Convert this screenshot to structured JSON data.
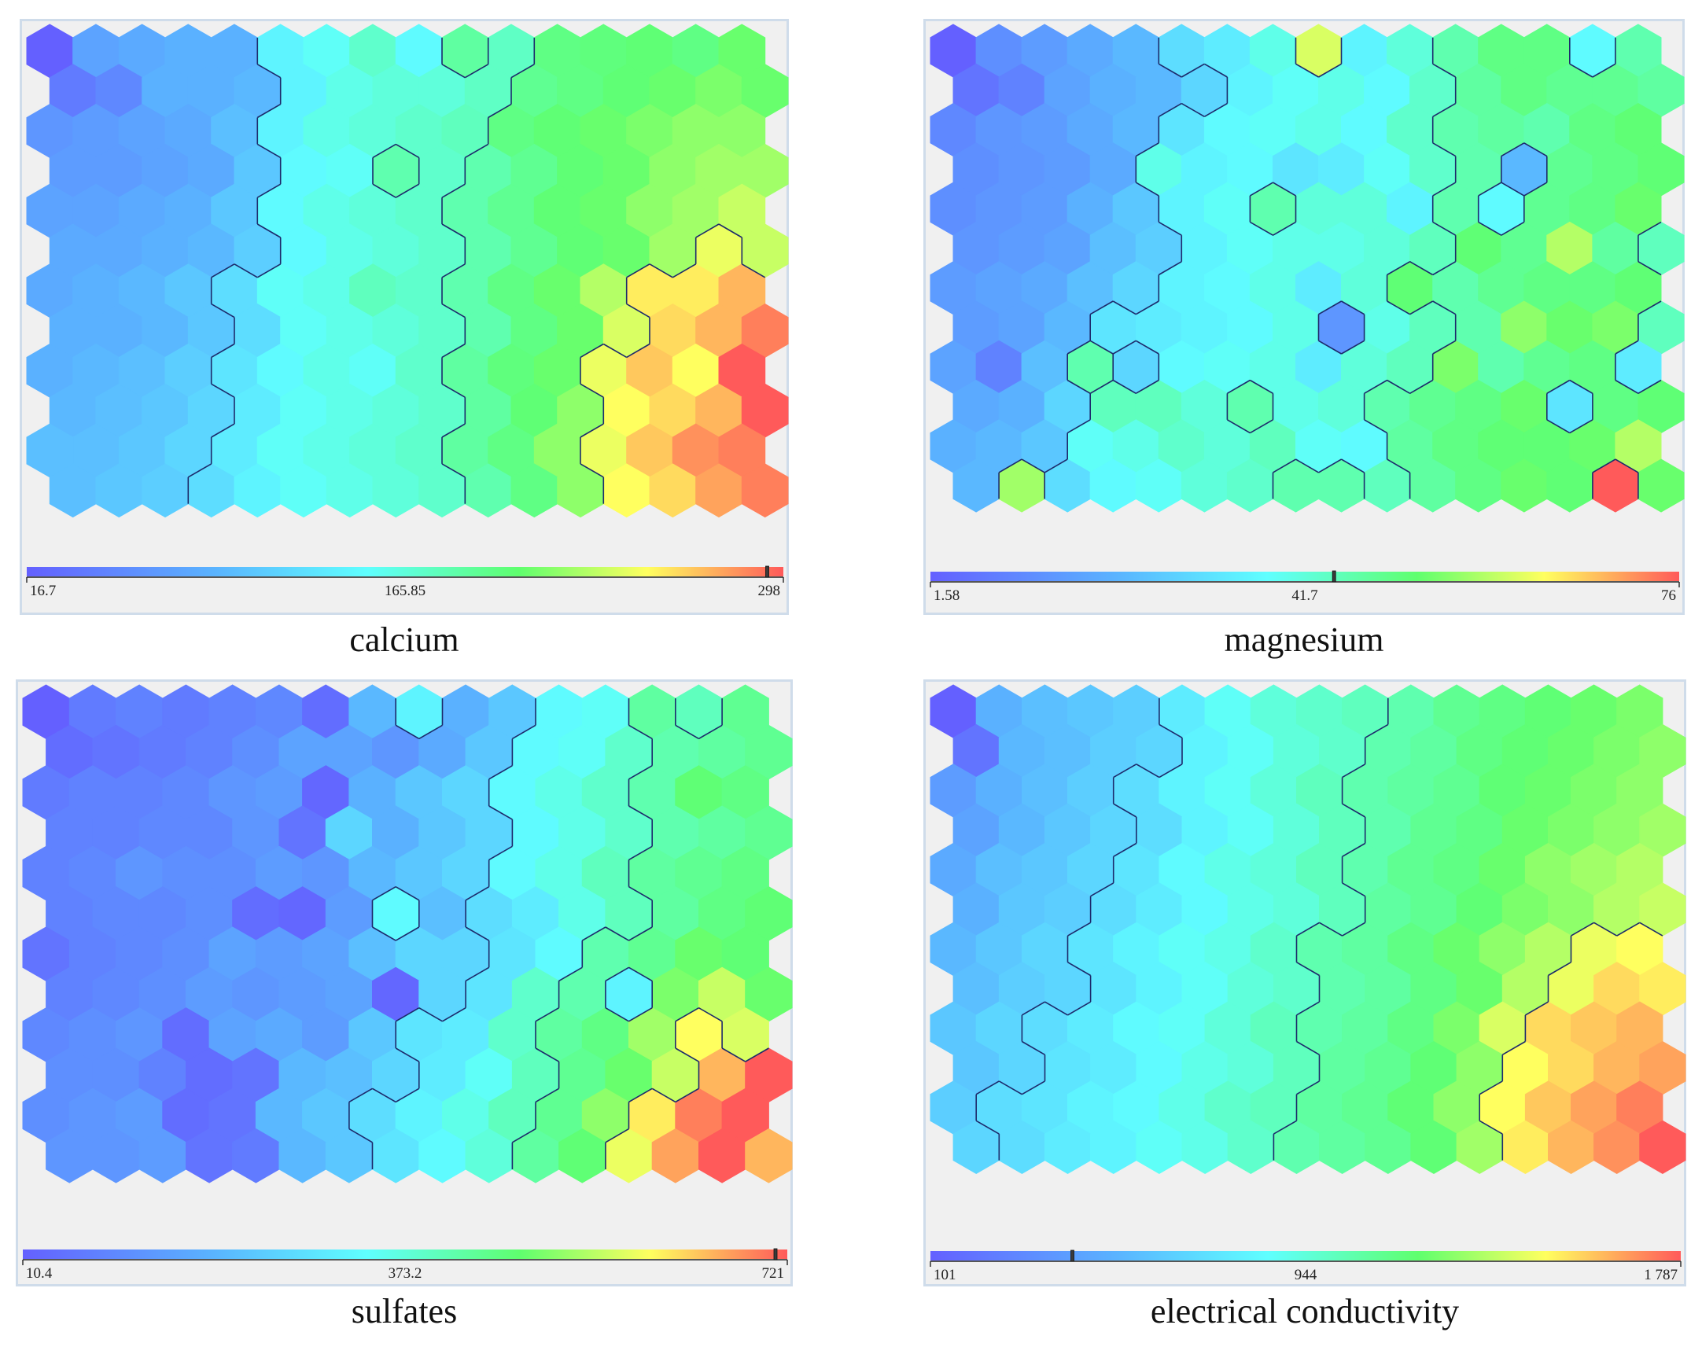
{
  "chart_data": [
    {
      "type": "heatmap",
      "title": "calcium",
      "scale": {
        "min_label": "16.7",
        "mid_label": "165.85",
        "max_label": "298",
        "min": 16.7,
        "mid": 165.85,
        "max": 298,
        "marker": 292
      },
      "grid": {
        "cols": 16,
        "rows": 12
      },
      "values": [
        [
          0.0,
          0.2,
          0.22,
          0.24,
          0.24,
          0.42,
          0.46,
          0.52,
          0.44,
          0.58,
          0.53,
          0.62,
          0.63,
          0.64,
          0.62,
          0.66
        ],
        [
          0.08,
          0.12,
          0.24,
          0.24,
          0.26,
          0.42,
          0.48,
          0.5,
          0.5,
          0.53,
          0.6,
          0.62,
          0.64,
          0.66,
          0.68,
          0.66
        ],
        [
          0.16,
          0.18,
          0.2,
          0.22,
          0.28,
          0.42,
          0.48,
          0.5,
          0.52,
          0.54,
          0.62,
          0.64,
          0.66,
          0.68,
          0.7,
          0.7
        ],
        [
          0.18,
          0.18,
          0.2,
          0.22,
          0.3,
          0.44,
          0.46,
          0.56,
          0.52,
          0.56,
          0.6,
          0.64,
          0.66,
          0.7,
          0.72,
          0.72
        ],
        [
          0.2,
          0.2,
          0.22,
          0.24,
          0.3,
          0.44,
          0.48,
          0.5,
          0.52,
          0.56,
          0.6,
          0.64,
          0.66,
          0.7,
          0.72,
          0.76
        ],
        [
          0.22,
          0.22,
          0.24,
          0.26,
          0.32,
          0.44,
          0.48,
          0.5,
          0.52,
          0.56,
          0.6,
          0.64,
          0.66,
          0.72,
          0.8,
          0.76
        ],
        [
          0.22,
          0.24,
          0.26,
          0.3,
          0.36,
          0.46,
          0.48,
          0.54,
          0.52,
          0.56,
          0.62,
          0.66,
          0.74,
          0.84,
          0.84,
          0.9
        ],
        [
          0.24,
          0.24,
          0.26,
          0.3,
          0.36,
          0.46,
          0.48,
          0.5,
          0.52,
          0.56,
          0.62,
          0.66,
          0.78,
          0.86,
          0.9,
          0.96
        ],
        [
          0.24,
          0.26,
          0.28,
          0.32,
          0.38,
          0.44,
          0.48,
          0.46,
          0.52,
          0.58,
          0.63,
          0.66,
          0.8,
          0.88,
          0.82,
          1.0
        ],
        [
          0.26,
          0.28,
          0.3,
          0.34,
          0.4,
          0.46,
          0.48,
          0.5,
          0.52,
          0.58,
          0.64,
          0.7,
          0.82,
          0.86,
          0.9,
          1.0
        ],
        [
          0.28,
          0.28,
          0.3,
          0.34,
          0.4,
          0.46,
          0.48,
          0.5,
          0.52,
          0.58,
          0.62,
          0.7,
          0.8,
          0.88,
          0.94,
          0.96
        ],
        [
          0.28,
          0.3,
          0.32,
          0.36,
          0.42,
          0.46,
          0.48,
          0.5,
          0.52,
          0.56,
          0.62,
          0.7,
          0.82,
          0.86,
          0.92,
          0.96
        ]
      ]
    },
    {
      "type": "heatmap",
      "title": "magnesium",
      "scale": {
        "min_label": "1.58",
        "mid_label": "41.7",
        "max_label": "76",
        "min": 1.58,
        "mid": 41.7,
        "max": 76,
        "marker": 41.7
      },
      "grid": {
        "cols": 16,
        "rows": 12
      },
      "values": [
        [
          0.0,
          0.14,
          0.18,
          0.22,
          0.26,
          0.36,
          0.4,
          0.48,
          0.78,
          0.42,
          0.5,
          0.56,
          0.62,
          0.62,
          0.44,
          0.56
        ],
        [
          0.06,
          0.1,
          0.2,
          0.24,
          0.26,
          0.34,
          0.42,
          0.46,
          0.48,
          0.44,
          0.52,
          0.58,
          0.62,
          0.6,
          0.6,
          0.58
        ],
        [
          0.12,
          0.16,
          0.18,
          0.22,
          0.26,
          0.38,
          0.44,
          0.46,
          0.48,
          0.44,
          0.52,
          0.56,
          0.58,
          0.56,
          0.62,
          0.64
        ],
        [
          0.14,
          0.16,
          0.18,
          0.22,
          0.48,
          0.42,
          0.44,
          0.38,
          0.4,
          0.46,
          0.52,
          0.56,
          0.26,
          0.6,
          0.62,
          0.64
        ],
        [
          0.14,
          0.16,
          0.18,
          0.24,
          0.3,
          0.42,
          0.46,
          0.56,
          0.5,
          0.5,
          0.42,
          0.56,
          0.44,
          0.6,
          0.62,
          0.66
        ],
        [
          0.16,
          0.18,
          0.2,
          0.28,
          0.32,
          0.42,
          0.46,
          0.48,
          0.48,
          0.5,
          0.54,
          0.64,
          0.6,
          0.74,
          0.58,
          0.54
        ],
        [
          0.18,
          0.2,
          0.22,
          0.28,
          0.34,
          0.42,
          0.44,
          0.48,
          0.4,
          0.5,
          0.64,
          0.56,
          0.6,
          0.62,
          0.62,
          0.64
        ],
        [
          0.18,
          0.2,
          0.26,
          0.38,
          0.4,
          0.42,
          0.44,
          0.48,
          0.16,
          0.48,
          0.54,
          0.56,
          0.7,
          0.66,
          0.68,
          0.54
        ],
        [
          0.2,
          0.1,
          0.28,
          0.56,
          0.34,
          0.44,
          0.46,
          0.48,
          0.4,
          0.5,
          0.54,
          0.68,
          0.56,
          0.6,
          0.62,
          0.4
        ],
        [
          0.22,
          0.24,
          0.34,
          0.54,
          0.54,
          0.5,
          0.56,
          0.48,
          0.5,
          0.56,
          0.6,
          0.62,
          0.66,
          0.38,
          0.62,
          0.64
        ],
        [
          0.24,
          0.26,
          0.3,
          0.46,
          0.48,
          0.52,
          0.5,
          0.54,
          0.46,
          0.44,
          0.58,
          0.62,
          0.64,
          0.64,
          0.66,
          0.74
        ],
        [
          0.26,
          0.72,
          0.36,
          0.44,
          0.46,
          0.5,
          0.52,
          0.56,
          0.56,
          0.54,
          0.58,
          0.62,
          0.66,
          0.64,
          1.0,
          0.66
        ]
      ]
    },
    {
      "type": "heatmap",
      "title": "sulfates",
      "scale": {
        "min_label": "10.4",
        "mid_label": "373.2",
        "max_label": "721",
        "min": 10.4,
        "mid": 373.2,
        "max": 721,
        "marker": 710
      },
      "grid": {
        "cols": 16,
        "rows": 12
      },
      "values": [
        [
          0.0,
          0.08,
          0.1,
          0.08,
          0.1,
          0.12,
          0.04,
          0.26,
          0.42,
          0.24,
          0.3,
          0.44,
          0.46,
          0.58,
          0.54,
          0.6
        ],
        [
          0.04,
          0.06,
          0.08,
          0.1,
          0.14,
          0.2,
          0.2,
          0.16,
          0.22,
          0.3,
          0.44,
          0.46,
          0.52,
          0.56,
          0.58,
          0.6
        ],
        [
          0.08,
          0.1,
          0.1,
          0.12,
          0.16,
          0.18,
          0.02,
          0.24,
          0.3,
          0.34,
          0.44,
          0.48,
          0.52,
          0.56,
          0.64,
          0.62
        ],
        [
          0.1,
          0.1,
          0.12,
          0.12,
          0.16,
          0.06,
          0.34,
          0.24,
          0.3,
          0.34,
          0.44,
          0.48,
          0.52,
          0.56,
          0.58,
          0.6
        ],
        [
          0.1,
          0.12,
          0.16,
          0.14,
          0.14,
          0.18,
          0.16,
          0.26,
          0.3,
          0.34,
          0.44,
          0.48,
          0.54,
          0.58,
          0.6,
          0.62
        ],
        [
          0.1,
          0.12,
          0.12,
          0.14,
          0.04,
          0.02,
          0.18,
          0.44,
          0.28,
          0.36,
          0.4,
          0.48,
          0.54,
          0.58,
          0.62,
          0.64
        ],
        [
          0.06,
          0.1,
          0.12,
          0.14,
          0.2,
          0.18,
          0.2,
          0.28,
          0.34,
          0.34,
          0.38,
          0.44,
          0.56,
          0.6,
          0.66,
          0.64
        ],
        [
          0.1,
          0.12,
          0.14,
          0.18,
          0.16,
          0.18,
          0.2,
          0.02,
          0.34,
          0.38,
          0.52,
          0.56,
          0.42,
          0.68,
          0.76,
          0.66
        ],
        [
          0.12,
          0.14,
          0.16,
          0.04,
          0.2,
          0.22,
          0.18,
          0.3,
          0.38,
          0.4,
          0.52,
          0.58,
          0.62,
          0.72,
          0.82,
          0.78
        ],
        [
          0.14,
          0.14,
          0.1,
          0.04,
          0.06,
          0.26,
          0.28,
          0.34,
          0.4,
          0.46,
          0.54,
          0.6,
          0.66,
          0.76,
          0.9,
          1.0
        ],
        [
          0.14,
          0.16,
          0.18,
          0.04,
          0.06,
          0.26,
          0.3,
          0.36,
          0.42,
          0.48,
          0.54,
          0.6,
          0.7,
          0.84,
          0.96,
          1.0
        ],
        [
          0.16,
          0.16,
          0.18,
          0.06,
          0.08,
          0.26,
          0.3,
          0.38,
          0.44,
          0.5,
          0.58,
          0.64,
          0.8,
          0.92,
          1.0,
          0.9
        ]
      ]
    },
    {
      "type": "heatmap",
      "title": "electrical conductivity",
      "scale": {
        "min_label": "101",
        "mid_label": "944",
        "max_label": "1 787",
        "min": 101,
        "mid": 944,
        "max": 1787,
        "marker": 420
      },
      "grid": {
        "cols": 16,
        "rows": 12
      },
      "values": [
        [
          0.0,
          0.24,
          0.28,
          0.3,
          0.32,
          0.4,
          0.46,
          0.5,
          0.52,
          0.54,
          0.56,
          0.6,
          0.62,
          0.64,
          0.66,
          0.68
        ],
        [
          0.06,
          0.26,
          0.28,
          0.32,
          0.34,
          0.42,
          0.46,
          0.5,
          0.52,
          0.56,
          0.58,
          0.62,
          0.64,
          0.66,
          0.68,
          0.7
        ],
        [
          0.18,
          0.24,
          0.28,
          0.32,
          0.36,
          0.42,
          0.46,
          0.5,
          0.54,
          0.56,
          0.58,
          0.6,
          0.64,
          0.66,
          0.68,
          0.7
        ],
        [
          0.2,
          0.26,
          0.3,
          0.34,
          0.36,
          0.42,
          0.46,
          0.5,
          0.54,
          0.56,
          0.6,
          0.62,
          0.66,
          0.68,
          0.7,
          0.72
        ],
        [
          0.22,
          0.28,
          0.3,
          0.34,
          0.38,
          0.44,
          0.48,
          0.5,
          0.54,
          0.56,
          0.6,
          0.62,
          0.66,
          0.7,
          0.72,
          0.74
        ],
        [
          0.24,
          0.3,
          0.32,
          0.36,
          0.4,
          0.44,
          0.48,
          0.5,
          0.54,
          0.58,
          0.6,
          0.64,
          0.68,
          0.7,
          0.74,
          0.76
        ],
        [
          0.26,
          0.3,
          0.34,
          0.38,
          0.42,
          0.46,
          0.48,
          0.52,
          0.56,
          0.58,
          0.62,
          0.66,
          0.7,
          0.74,
          0.8,
          0.82
        ],
        [
          0.28,
          0.32,
          0.34,
          0.38,
          0.42,
          0.46,
          0.5,
          0.52,
          0.56,
          0.58,
          0.62,
          0.66,
          0.74,
          0.8,
          0.86,
          0.84
        ],
        [
          0.3,
          0.34,
          0.36,
          0.4,
          0.44,
          0.46,
          0.5,
          0.54,
          0.56,
          0.58,
          0.62,
          0.68,
          0.78,
          0.86,
          0.88,
          0.9
        ],
        [
          0.3,
          0.34,
          0.38,
          0.4,
          0.44,
          0.48,
          0.5,
          0.54,
          0.58,
          0.6,
          0.64,
          0.7,
          0.82,
          0.86,
          0.9,
          0.92
        ],
        [
          0.32,
          0.36,
          0.38,
          0.42,
          0.44,
          0.48,
          0.52,
          0.54,
          0.58,
          0.6,
          0.64,
          0.7,
          0.82,
          0.88,
          0.92,
          0.96
        ],
        [
          0.34,
          0.36,
          0.4,
          0.42,
          0.46,
          0.48,
          0.52,
          0.56,
          0.58,
          0.6,
          0.64,
          0.72,
          0.84,
          0.9,
          0.94,
          1.0
        ]
      ]
    }
  ],
  "colors": {
    "border": "#cfdcea",
    "boundary": "#1d2a6b",
    "background": "#f0f0f0"
  }
}
